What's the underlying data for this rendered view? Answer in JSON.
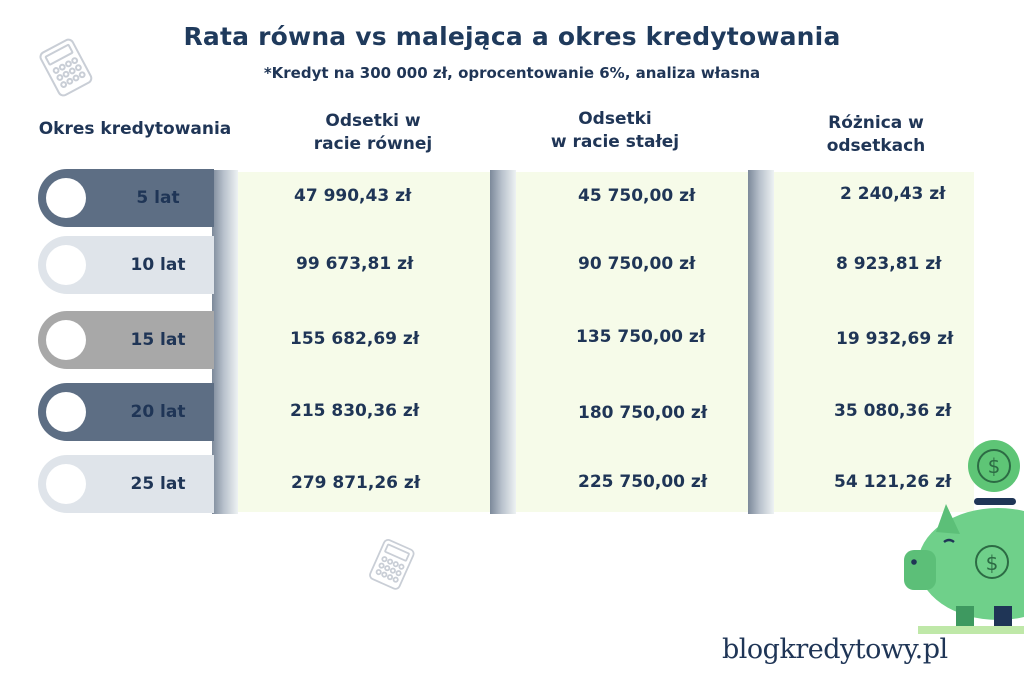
{
  "title": "Rata równa vs malejąca a okres kredytowania",
  "subtitle": "*Kredyt na 300 000 zł, oprocentowanie 6%, analiza własna",
  "headers": {
    "period": "Okres kredytowania",
    "equal_line1": "Odsetki w",
    "equal_line2": "racie równej",
    "fixed_line1": "Odsetki",
    "fixed_line2": "w racie stałej",
    "diff_line1": "Różnica w",
    "diff_line2": "odsetkach"
  },
  "rows": [
    {
      "period": "5 lat",
      "equal": "47 990,43 zł",
      "fixed": "45 750,00 zł",
      "diff": "2 240,43 zł",
      "pill_color": "#5d6e84"
    },
    {
      "period": "10 lat",
      "equal": "99 673,81 zł",
      "fixed": "90 750,00 zł",
      "diff": "8 923,81 zł",
      "pill_color": "#dfe4ea"
    },
    {
      "period": "15 lat",
      "equal": "155 682,69 zł",
      "fixed": "135 750,00 zł",
      "diff": "19 932,69 zł",
      "pill_color": "#a8a8a8"
    },
    {
      "period": "20 lat",
      "equal": "215 830,36 zł",
      "fixed": "180 750,00 zł",
      "diff": "35 080,36 zł",
      "pill_color": "#5d6e84"
    },
    {
      "period": "25 lat",
      "equal": "279 871,26 zł",
      "fixed": "225 750,00 zł",
      "diff": "54 121,26 zł",
      "pill_color": "#dfe4ea"
    }
  ],
  "logo": "blogkredytowy.pl",
  "icons": {
    "calculator": "calculator-icon",
    "piggy_bank": "piggy-bank-icon",
    "coin": "dollar-coin-icon"
  }
}
